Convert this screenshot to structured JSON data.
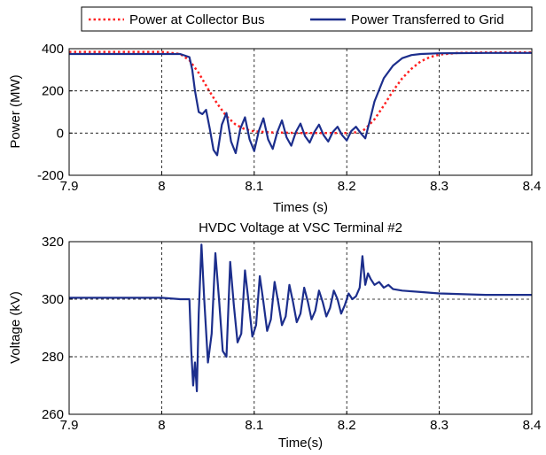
{
  "chart_data": [
    {
      "type": "line",
      "title": "",
      "xlabel": "Times (s)",
      "ylabel": "Power (MW)",
      "xlim": [
        7.9,
        8.4
      ],
      "ylim": [
        -200,
        400
      ],
      "xticks": [
        "7.9",
        "8",
        "8.1",
        "8.2",
        "8.3",
        "8.4"
      ],
      "yticks": [
        "-200",
        "0",
        "200",
        "400"
      ],
      "grid": true,
      "legend": {
        "placement": "top-outside",
        "entries": [
          "Power at Collector Bus",
          "Power Transferred to Grid"
        ]
      },
      "series": [
        {
          "name": "Power at Collector Bus",
          "color": "#ff2020",
          "style": "dotted",
          "x": [
            7.9,
            8.0,
            8.02,
            8.03,
            8.04,
            8.05,
            8.06,
            8.07,
            8.08,
            8.09,
            8.1,
            8.12,
            8.15,
            8.2,
            8.215,
            8.22,
            8.23,
            8.24,
            8.25,
            8.26,
            8.27,
            8.28,
            8.29,
            8.3,
            8.32,
            8.35,
            8.4
          ],
          "values": [
            385,
            385,
            375,
            345,
            285,
            210,
            140,
            80,
            40,
            18,
            8,
            3,
            0,
            0,
            5,
            20,
            65,
            130,
            200,
            260,
            305,
            340,
            360,
            372,
            380,
            382,
            382
          ]
        },
        {
          "name": "Power Transferred to Grid",
          "color": "#1c2e8c",
          "style": "solid",
          "x": [
            7.9,
            7.95,
            8.0,
            8.02,
            8.03,
            8.033,
            8.036,
            8.04,
            8.044,
            8.048,
            8.052,
            8.056,
            8.06,
            8.065,
            8.07,
            8.075,
            8.08,
            8.085,
            8.09,
            8.095,
            8.1,
            8.105,
            8.11,
            8.115,
            8.12,
            8.125,
            8.13,
            8.135,
            8.14,
            8.145,
            8.15,
            8.155,
            8.16,
            8.165,
            8.17,
            8.175,
            8.18,
            8.185,
            8.19,
            8.195,
            8.2,
            8.205,
            8.21,
            8.215,
            8.22,
            8.225,
            8.23,
            8.24,
            8.25,
            8.26,
            8.27,
            8.28,
            8.3,
            8.35,
            8.4
          ],
          "values": [
            375,
            375,
            375,
            375,
            360,
            300,
            200,
            100,
            90,
            110,
            20,
            -80,
            -105,
            40,
            95,
            -40,
            -95,
            20,
            75,
            -30,
            -85,
            10,
            70,
            -30,
            -75,
            5,
            60,
            -20,
            -60,
            5,
            45,
            -15,
            -45,
            5,
            40,
            -10,
            -40,
            5,
            30,
            -10,
            -35,
            10,
            30,
            0,
            -25,
            60,
            150,
            260,
            320,
            355,
            370,
            375,
            378,
            380,
            380
          ]
        }
      ]
    },
    {
      "type": "line",
      "title": "HVDC Voltage at VSC Terminal #2",
      "xlabel": "Time(s)",
      "ylabel": "Voltage (kV)",
      "xlim": [
        7.9,
        8.4
      ],
      "ylim": [
        260,
        320
      ],
      "xticks": [
        "7.9",
        "8",
        "8.1",
        "8.2",
        "8.3",
        "8.4"
      ],
      "yticks": [
        "260",
        "280",
        "300",
        "320"
      ],
      "grid": true,
      "series": [
        {
          "color": "#1c2e8c",
          "style": "solid",
          "x": [
            7.9,
            7.95,
            8.0,
            8.02,
            8.03,
            8.032,
            8.034,
            8.036,
            8.038,
            8.04,
            8.043,
            8.046,
            8.05,
            8.054,
            8.058,
            8.062,
            8.066,
            8.07,
            8.074,
            8.078,
            8.082,
            8.086,
            8.09,
            8.094,
            8.098,
            8.102,
            8.106,
            8.11,
            8.114,
            8.118,
            8.122,
            8.126,
            8.13,
            8.134,
            8.138,
            8.142,
            8.146,
            8.15,
            8.154,
            8.158,
            8.162,
            8.166,
            8.17,
            8.174,
            8.178,
            8.182,
            8.186,
            8.19,
            8.194,
            8.198,
            8.202,
            8.206,
            8.21,
            8.214,
            8.217,
            8.22,
            8.223,
            8.226,
            8.23,
            8.235,
            8.24,
            8.245,
            8.25,
            8.26,
            8.28,
            8.3,
            8.35,
            8.4
          ],
          "values": [
            300.5,
            300.5,
            300.5,
            300,
            300,
            282,
            270,
            278,
            268,
            295,
            319,
            300,
            278,
            288,
            316,
            300,
            282,
            280,
            313,
            298,
            285,
            288,
            310,
            299,
            287,
            291,
            308,
            299,
            289,
            293,
            306,
            299,
            291,
            294,
            305,
            299,
            292,
            295,
            304,
            299,
            293,
            296,
            303,
            299,
            294,
            297,
            303,
            300,
            295,
            298,
            302,
            300,
            301,
            304,
            315,
            305,
            309,
            307,
            305,
            306,
            304,
            305,
            303.5,
            303,
            302.5,
            302,
            301.5,
            301.5
          ]
        }
      ]
    }
  ]
}
